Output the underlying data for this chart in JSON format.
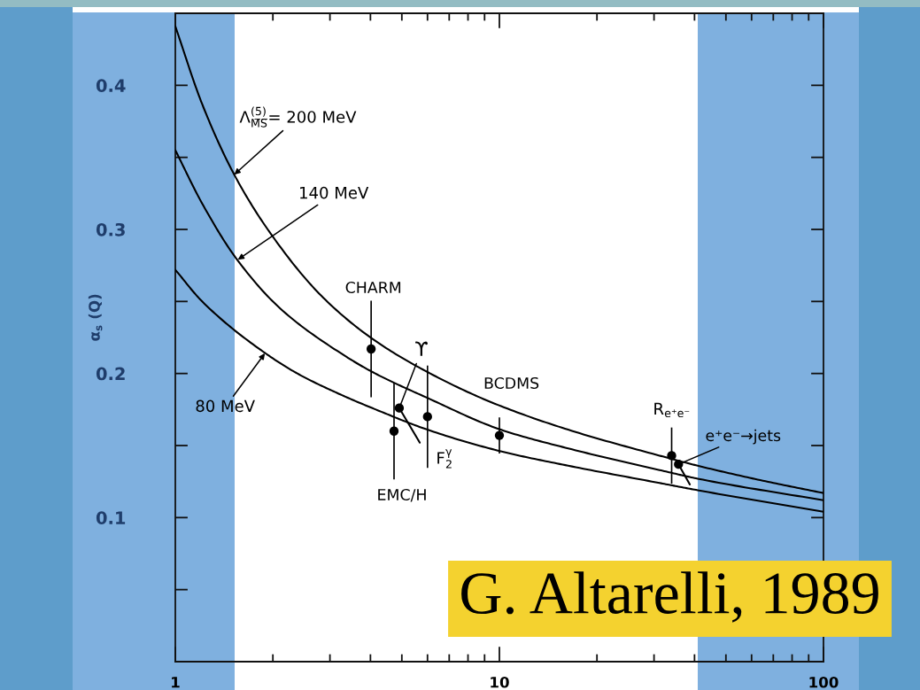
{
  "chart_data": {
    "type": "line",
    "ylabel": "α$_{s}$ (Q)",
    "log": "x",
    "xlim": [
      1,
      100
    ],
    "ylim": [
      0,
      0.45
    ],
    "xticks": [
      1,
      {
        "value": 2,
        "label": null
      },
      {
        "value": 3,
        "label": null
      },
      {
        "value": 4,
        "label": null
      },
      {
        "value": 5,
        "label": null
      },
      {
        "value": 6,
        "label": null
      },
      {
        "value": 7,
        "label": null
      },
      {
        "value": 8,
        "label": null
      },
      {
        "value": 9,
        "label": null
      },
      10,
      {
        "value": 20,
        "label": null
      },
      {
        "value": 30,
        "label": null
      },
      {
        "value": 40,
        "label": null
      },
      {
        "value": 50,
        "label": null
      },
      {
        "value": 60,
        "label": null
      },
      {
        "value": 70,
        "label": null
      },
      {
        "value": 80,
        "label": null
      },
      {
        "value": 90,
        "label": null
      },
      100
    ],
    "yticks": [
      {
        "value": 0.05,
        "label": null
      },
      0.1,
      {
        "value": 0.15,
        "label": null
      },
      0.2,
      {
        "value": 0.25,
        "label": null
      },
      0.3,
      {
        "value": 0.35,
        "label": null
      },
      0.4
    ],
    "series": [
      {
        "color": "#000000",
        "x": [
          1,
          1.21,
          1.52,
          1.97,
          2.82,
          4.06,
          6,
          9.45,
          16.3,
          31.2,
          40.9,
          63.8,
          100
        ],
        "values": [
          0.441,
          0.387,
          0.338,
          0.297,
          0.254,
          0.224,
          0.201,
          0.18,
          0.161,
          0.143,
          0.136,
          0.126,
          0.117
        ]
      },
      {
        "color": "#000000",
        "x": [
          1,
          1.21,
          1.54,
          2.11,
          3.35,
          4.06,
          6,
          10.1,
          16.3,
          31.2,
          40.9,
          100
        ],
        "values": [
          0.355,
          0.318,
          0.28,
          0.245,
          0.212,
          0.201,
          0.183,
          0.161,
          0.148,
          0.133,
          0.127,
          0.112
        ]
      },
      {
        "color": "#000000",
        "x": [
          1,
          1.21,
          1.87,
          2.38,
          3.19,
          4.26,
          6,
          10.1,
          16.3,
          31.2,
          40.9,
          100
        ],
        "values": [
          0.272,
          0.25,
          0.215,
          0.2,
          0.186,
          0.174,
          0.161,
          0.146,
          0.136,
          0.124,
          0.119,
          0.104
        ]
      },
      {
        "type": "scatter",
        "marker": "circle",
        "color": "#000000",
        "x": [
          4.02,
          4.73,
          4.91,
          6,
          10,
          34,
          35.7
        ],
        "values": [
          0.217,
          0.16,
          0.176,
          0.17,
          0.157,
          0.143,
          0.137
        ],
        "errors": [
          0.033,
          0.033,
          null,
          0.035,
          0.012,
          0.019,
          null
        ]
      },
      {
        "type": "line",
        "color": "#000000",
        "x": [
          4.91,
          5.68
        ],
        "values": [
          0.176,
          0.152
        ]
      },
      {
        "type": "line",
        "color": "#000000",
        "x": [
          35.7,
          38.7
        ],
        "values": [
          0.137,
          0.123
        ]
      }
    ],
    "annotations": [
      {
        "text": "Λ$^{(5)}$$_{M̅S̅}$= 200 MeV",
        "x": 1.52,
        "y": 0.338
      },
      {
        "text": "140 MeV",
        "x": 1.56,
        "y": 0.279
      },
      {
        "text": "80 MeV",
        "x": 1.89,
        "y": 0.214
      },
      "CHARM",
      "EMC/H",
      {
        "text": "ϒ",
        "x": 4.91,
        "y": 0.176
      },
      "F$^{γ}$$_{2}$",
      "BCDMS",
      "R$_{e⁺e⁻}$",
      {
        "text": "e⁺e⁻→jets",
        "x": 35.7,
        "y": 0.137
      },
      "G. Altarelli, 1989"
    ]
  }
}
